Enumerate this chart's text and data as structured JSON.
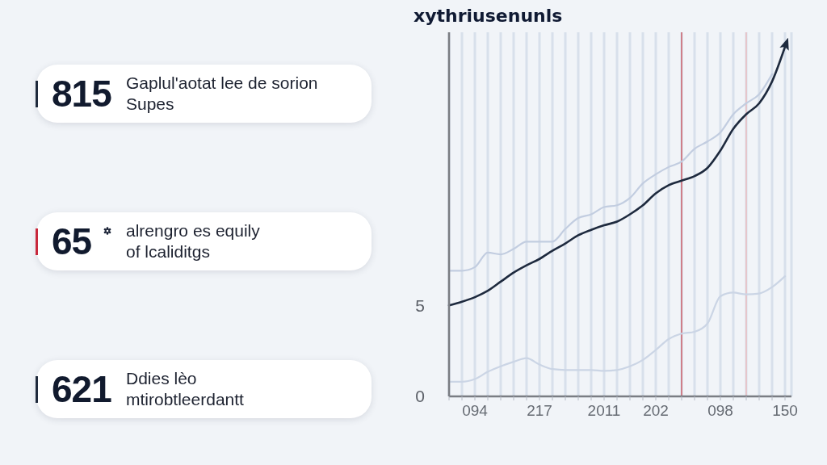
{
  "chart_data": [
    {
      "type": "other",
      "annotations": [
        "815",
        "Gaplul'aotat lee de sorion\nSupes",
        "65",
        "alrengro es equily\nof lcaliditgs",
        "621",
        "Ddies lèo\nmtirobtleerdantt"
      ],
      "colors": [
        "#1f2a3c",
        "#c8283c",
        "#1f2a3c"
      ]
    },
    {
      "type": "line",
      "title": "xythriusenunls",
      "categories": [
        null,
        null,
        "094",
        null,
        null,
        null,
        null,
        "217",
        null,
        null,
        null,
        null,
        "2011",
        null,
        null,
        null,
        "202",
        null,
        null,
        null,
        null,
        "098",
        null,
        null,
        null,
        null,
        "150"
      ],
      "ylim": [
        0,
        20
      ],
      "yticks": [
        0,
        5
      ],
      "grid": "x",
      "line_style": "solid",
      "series": [
        {
          "color": "#1e2a3e",
          "values": [
            5.0,
            5.2,
            5.45,
            5.8,
            6.3,
            6.8,
            7.2,
            7.55,
            8.0,
            8.4,
            8.85,
            9.15,
            9.4,
            9.6,
            10.0,
            10.5,
            11.15,
            11.6,
            11.85,
            12.1,
            12.55,
            13.5,
            14.7,
            15.5,
            16.1,
            17.3,
            19.2
          ]
        },
        {
          "color": "#c2cde0",
          "values": [
            6.9,
            6.9,
            7.1,
            7.9,
            7.8,
            8.1,
            8.5,
            8.5,
            8.5,
            9.2,
            9.8,
            10.0,
            10.4,
            10.5,
            10.9,
            11.7,
            12.2,
            12.6,
            12.9,
            13.6,
            14.0,
            14.5,
            15.5,
            16.1,
            16.6,
            17.7,
            null
          ]
        },
        {
          "color": "#cbd5e5",
          "values": [
            0.8,
            0.8,
            0.95,
            1.35,
            1.65,
            1.9,
            2.1,
            1.75,
            1.5,
            1.45,
            1.45,
            1.45,
            1.4,
            1.45,
            1.65,
            2.0,
            2.55,
            3.15,
            3.45,
            3.55,
            4.0,
            5.5,
            5.7,
            5.6,
            5.65,
            6.0,
            6.6
          ]
        }
      ]
    }
  ]
}
